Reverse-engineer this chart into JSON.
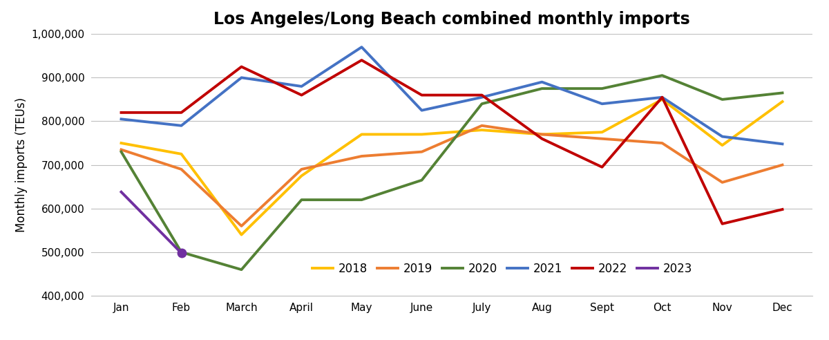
{
  "title": "Los Angeles/Long Beach combined monthly imports",
  "ylabel": "Monthly imports (TEUs)",
  "months": [
    "Jan",
    "Feb",
    "March",
    "April",
    "May",
    "June",
    "July",
    "Aug",
    "Sept",
    "Oct",
    "Nov",
    "Dec"
  ],
  "ylim": [
    400000,
    1000000
  ],
  "yticks": [
    400000,
    500000,
    600000,
    700000,
    800000,
    900000,
    1000000
  ],
  "series": {
    "2018": {
      "color": "#FFC000",
      "values": [
        750000,
        725000,
        540000,
        675000,
        770000,
        770000,
        780000,
        770000,
        775000,
        850000,
        745000,
        845000
      ]
    },
    "2019": {
      "color": "#ED7D31",
      "values": [
        735000,
        690000,
        560000,
        690000,
        720000,
        730000,
        790000,
        770000,
        760000,
        750000,
        660000,
        700000
      ]
    },
    "2020": {
      "color": "#548235",
      "values": [
        730000,
        500000,
        460000,
        620000,
        620000,
        665000,
        840000,
        875000,
        875000,
        905000,
        850000,
        865000
      ]
    },
    "2021": {
      "color": "#4472C4",
      "values": [
        805000,
        790000,
        900000,
        880000,
        970000,
        825000,
        855000,
        890000,
        840000,
        855000,
        765000,
        748000
      ]
    },
    "2022": {
      "color": "#C00000",
      "values": [
        820000,
        820000,
        925000,
        860000,
        940000,
        860000,
        860000,
        760000,
        695000,
        855000,
        565000,
        598000
      ]
    },
    "2023": {
      "color": "#7030A0",
      "values": [
        638000,
        498000,
        null,
        null,
        null,
        null,
        null,
        null,
        null,
        null,
        null,
        null
      ]
    }
  },
  "legend_order": [
    "2018",
    "2019",
    "2020",
    "2021",
    "2022",
    "2023"
  ],
  "title_fontsize": 17,
  "axis_label_fontsize": 12,
  "tick_fontsize": 11,
  "legend_fontsize": 12,
  "line_width": 2.8,
  "background_color": "#FFFFFF",
  "grid_color": "#BFBFBF"
}
